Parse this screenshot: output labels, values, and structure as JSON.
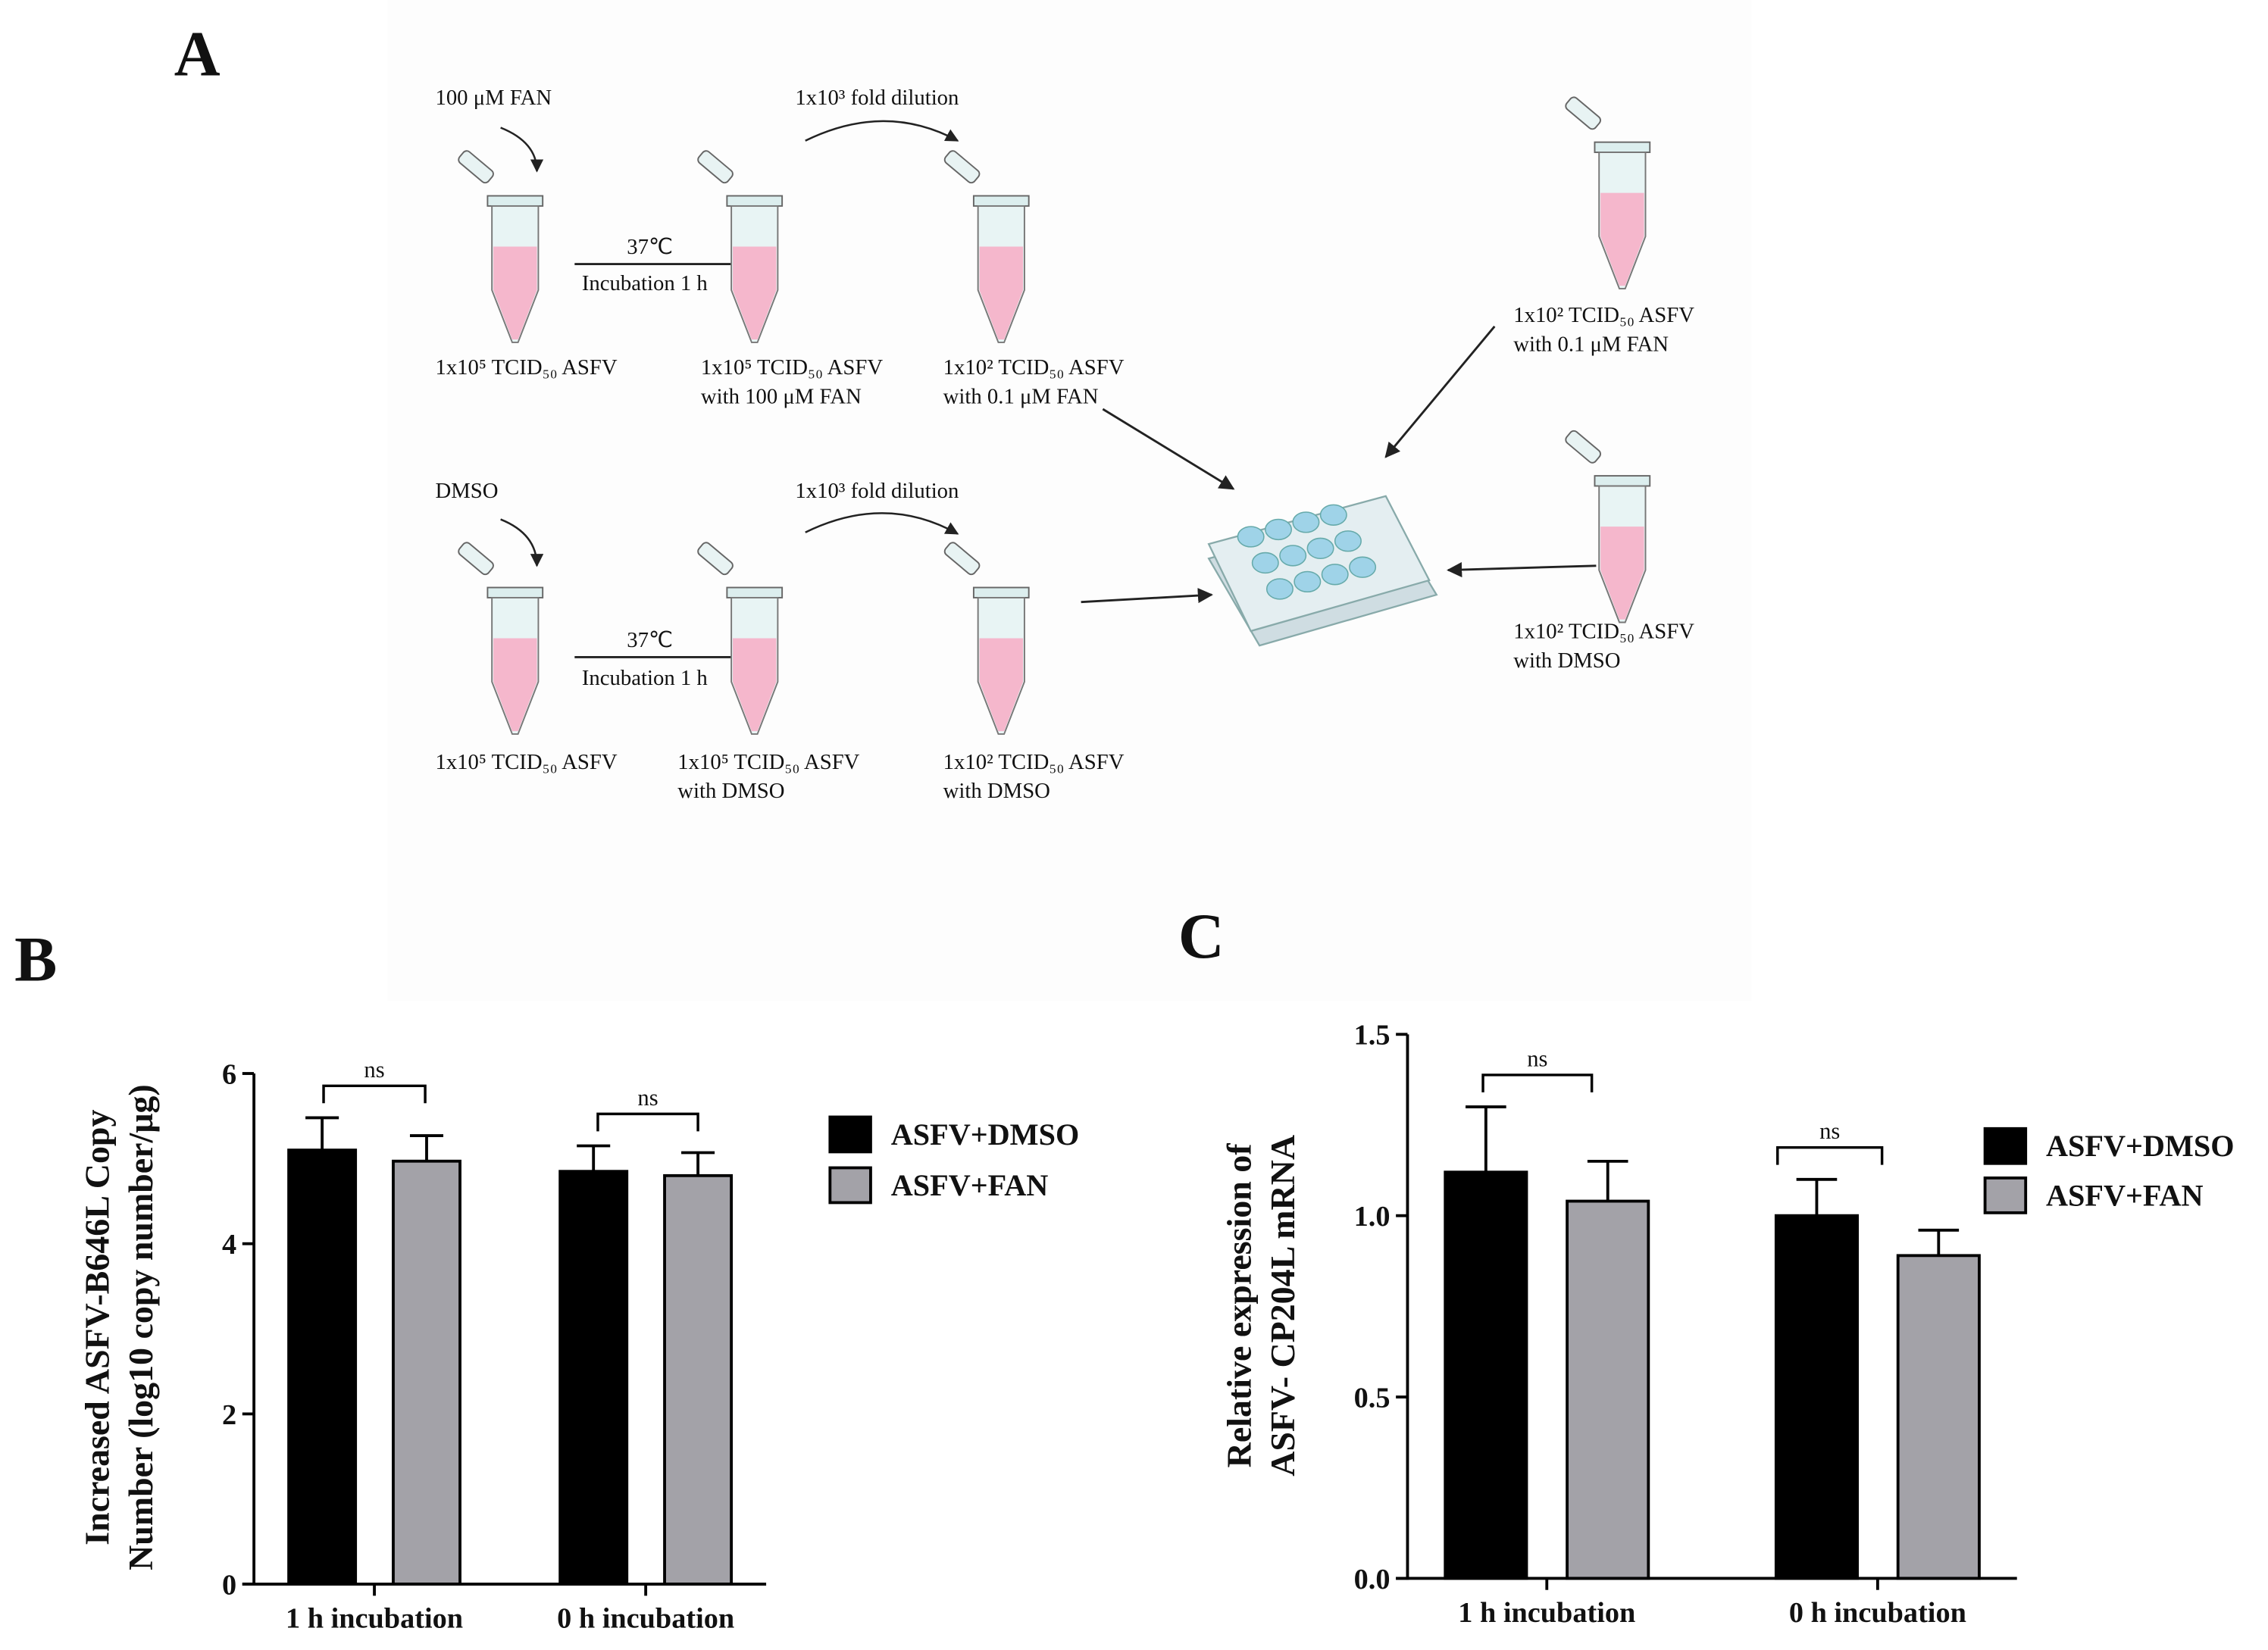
{
  "panels": [
    "A",
    "B",
    "C"
  ],
  "diagram": {
    "labels": [
      "100 μM FAN",
      "1x10³ fold dilution",
      "37℃",
      "Incubation 1 h",
      "1x10⁵ TCID₅₀ ASFV",
      "1x10⁵ TCID₅₀ ASFV",
      "with 100 μM FAN",
      "1x10² TCID₅₀ ASFV",
      "with 0.1 μM FAN",
      "1x10² TCID₅₀ ASFV",
      "with 0.1 μM FAN",
      "DMSO",
      "1x10³ fold dilution",
      "37℃",
      "Incubation 1 h",
      "1x10⁵ TCID₅₀ ASFV",
      "1x10⁵ TCID₅₀ ASFV",
      "with DMSO",
      "1x10² TCID₅₀ ASFV",
      "with DMSO",
      "1x10² TCID₅₀ ASFV",
      "with DMSO"
    ]
  },
  "chart_data": [
    {
      "type": "bar",
      "ylabel": [
        "Increased ASFV-B646L Copy",
        "Number (log10 copy number/μg)"
      ],
      "categories": [
        "1 h incubation",
        "0 h incubation"
      ],
      "series": [
        {
          "name": "ASFV+DMSO",
          "color": "#000000",
          "values": [
            5.1,
            4.85
          ],
          "errors": [
            0.38,
            0.3
          ]
        },
        {
          "name": "ASFV+FAN",
          "color": "#a3a2a8",
          "values": [
            4.97,
            4.8
          ],
          "errors": [
            0.3,
            0.27
          ]
        }
      ],
      "ylim": [
        0,
        6
      ],
      "yticks": [
        0,
        2,
        4,
        6
      ],
      "annotations": [
        "ns",
        "ns"
      ]
    },
    {
      "type": "bar",
      "ylabel": [
        "Relative  expression of",
        "ASFV- CP204L mRNA"
      ],
      "categories": [
        "1 h incubation",
        "0 h incubation"
      ],
      "series": [
        {
          "name": "ASFV+DMSO",
          "color": "#000000",
          "values": [
            1.12,
            1.0
          ],
          "errors": [
            0.18,
            0.1
          ]
        },
        {
          "name": "ASFV+FAN",
          "color": "#a3a2a8",
          "values": [
            1.04,
            0.89
          ],
          "errors": [
            0.11,
            0.07
          ]
        }
      ],
      "ylim": [
        0,
        1.5
      ],
      "yticks": [
        {
          "value": 0,
          "label": "0.0"
        },
        0.5,
        {
          "value": 1,
          "label": "1.0"
        },
        1.5
      ],
      "annotations": [
        "ns",
        "ns"
      ]
    }
  ]
}
